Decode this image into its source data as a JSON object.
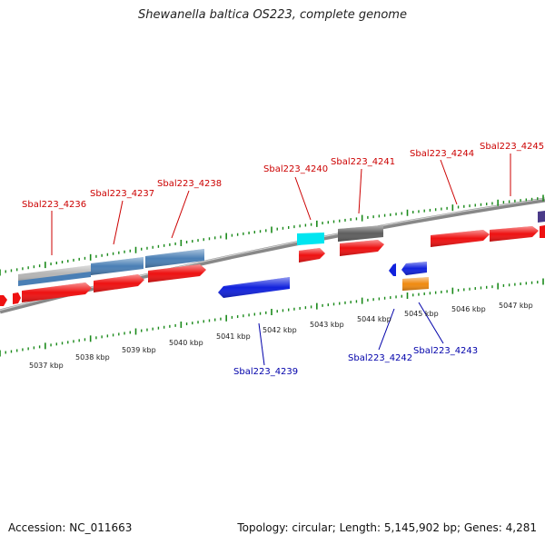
{
  "title": "Shewanella baltica OS223, complete genome",
  "footer": {
    "accession": "Accession: NC_011663",
    "summary": "Topology: circular; Length: 5,145,902 bp; Genes: 4,281"
  },
  "colors": {
    "red": "#ee1111",
    "blue": "#1122dd",
    "steelblue": "#4a7fb5",
    "grey": "#b0b0b0",
    "darkgrey": "#606060",
    "cyan": "#00e5f0",
    "orange": "#f08a10",
    "purple": "#4a3a88",
    "tick": "#1a8a1a",
    "labelRed": "#cc0000",
    "labelBlue": "#0000aa"
  },
  "scale": {
    "labels": [
      "5037 kbp",
      "5038 kbp",
      "5039 kbp",
      "5040 kbp",
      "5041 kbp",
      "5042 kbp",
      "5043 kbp",
      "5044 kbp",
      "5045 kbp",
      "5046 kbp",
      "5047 kbp"
    ]
  },
  "gene_labels_top": [
    "Sbal223_4236",
    "Sbal223_4237",
    "Sbal223_4238",
    "Sbal223_4240",
    "Sbal223_4241",
    "Sbal223_4244",
    "Sbal223_4245"
  ],
  "gene_labels_bottom": [
    "Sbal223_4239",
    "Sbal223_4242",
    "Sbal223_4243"
  ]
}
